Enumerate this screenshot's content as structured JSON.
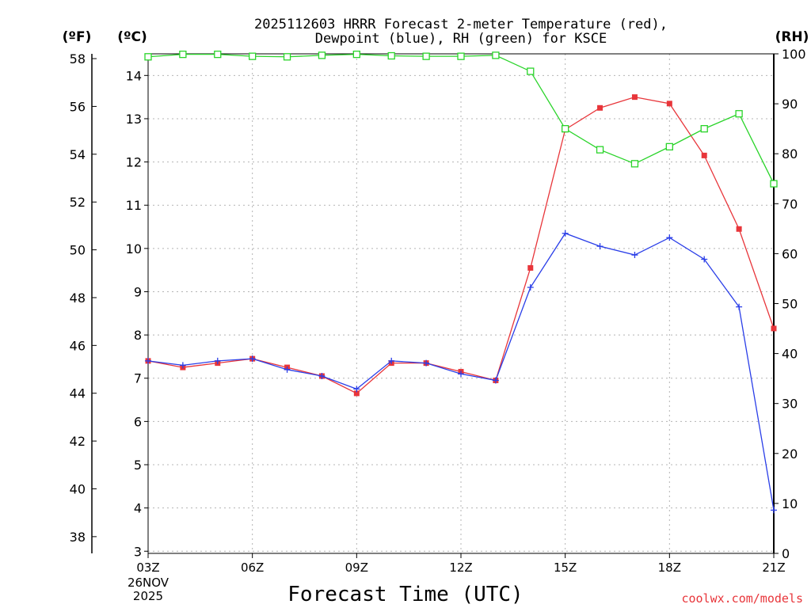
{
  "chart_data": {
    "type": "line",
    "title_line1": "2025112603 HRRR Forecast 2-meter Temperature (red),",
    "title_line2": "Dewpoint (blue), RH (green) for KSCE",
    "xlabel": "Forecast Time (UTC)",
    "x_hours": [
      3,
      4,
      5,
      6,
      7,
      8,
      9,
      10,
      11,
      12,
      13,
      14,
      15,
      16,
      17,
      18,
      19,
      20,
      21
    ],
    "x_ticks": [
      {
        "hour": 3,
        "label": "03Z"
      },
      {
        "hour": 6,
        "label": "06Z"
      },
      {
        "hour": 9,
        "label": "09Z"
      },
      {
        "hour": 12,
        "label": "12Z"
      },
      {
        "hour": 15,
        "label": "15Z"
      },
      {
        "hour": 18,
        "label": "18Z"
      },
      {
        "hour": 21,
        "label": "21Z"
      }
    ],
    "date_label_line1": "26NOV",
    "date_label_line2": "2025",
    "x_range": [
      3,
      21
    ],
    "left_axis_c": {
      "label": "(ºC)",
      "range": [
        2.95,
        14.5
      ],
      "ticks": [
        3,
        4,
        5,
        6,
        7,
        8,
        9,
        10,
        11,
        12,
        13,
        14
      ]
    },
    "left_axis_f": {
      "label": "(ºF)",
      "range": [
        37.3,
        58.2
      ],
      "ticks": [
        38,
        40,
        42,
        44,
        46,
        48,
        50,
        52,
        54,
        56,
        58
      ]
    },
    "right_axis_rh": {
      "label": "(RH)",
      "range": [
        0,
        100
      ],
      "ticks": [
        0,
        10,
        20,
        30,
        40,
        50,
        60,
        70,
        80,
        90,
        100
      ]
    },
    "series": [
      {
        "name": "Temperature",
        "units": "C",
        "axis": "c",
        "color": "#e8353a",
        "marker": "filled-square",
        "values": [
          7.4,
          7.25,
          7.35,
          7.45,
          7.25,
          7.05,
          6.65,
          7.35,
          7.35,
          7.15,
          6.95,
          9.55,
          12.75,
          13.25,
          13.5,
          13.35,
          12.15,
          10.45,
          8.15
        ]
      },
      {
        "name": "Dewpoint",
        "units": "C",
        "axis": "c",
        "color": "#2a3ee8",
        "marker": "plus",
        "values": [
          7.4,
          7.3,
          7.4,
          7.45,
          7.2,
          7.05,
          6.75,
          7.4,
          7.35,
          7.1,
          6.95,
          9.1,
          10.35,
          10.05,
          9.85,
          10.25,
          9.75,
          8.65,
          3.95
        ]
      },
      {
        "name": "RH",
        "units": "%",
        "axis": "rh",
        "color": "#2ad42a",
        "marker": "open-square",
        "values": [
          99.4,
          99.9,
          99.9,
          99.5,
          99.4,
          99.7,
          99.9,
          99.6,
          99.5,
          99.5,
          99.7,
          96.5,
          85.0,
          80.8,
          78.0,
          81.4,
          85.0,
          88.0,
          74.0
        ]
      }
    ],
    "grid": true,
    "grid_style": "dotted"
  },
  "watermark": "coolwx.com/models",
  "colors": {
    "watermark": "#e8353a",
    "grid": "#b4b4b4",
    "axis": "#000000"
  }
}
